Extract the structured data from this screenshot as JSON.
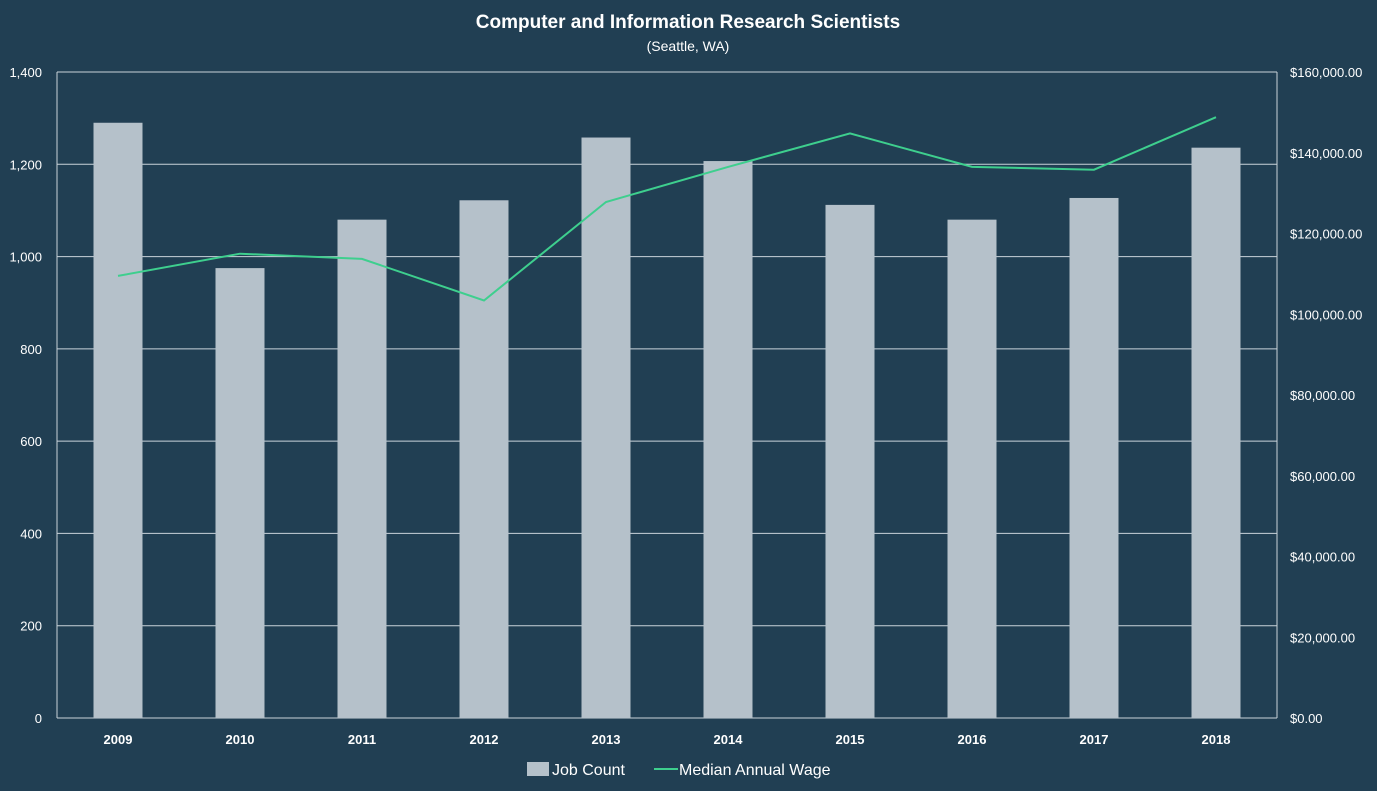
{
  "chart_data": {
    "type": "bar",
    "title": "Computer and Information Research Scientists",
    "subtitle": "(Seattle, WA)",
    "categories": [
      "2009",
      "2010",
      "2011",
      "2012",
      "2013",
      "2014",
      "2015",
      "2016",
      "2017",
      "2018"
    ],
    "series": [
      {
        "name": "Job Count",
        "type": "bar",
        "axis": "left",
        "color": "#b5c1ca",
        "values": [
          1290,
          975,
          1080,
          1122,
          1258,
          1207,
          1112,
          1080,
          1127,
          1236
        ]
      },
      {
        "name": "Median Annual Wage",
        "type": "line",
        "axis": "right",
        "color": "#3ecf8e",
        "values": [
          109500,
          115000,
          113700,
          103400,
          127800,
          136500,
          144800,
          136500,
          135800,
          148800
        ]
      }
    ],
    "y_left": {
      "min": 0,
      "max": 1400,
      "ticks": [
        0,
        200,
        400,
        600,
        800,
        1000,
        1200,
        1400
      ],
      "tick_labels": [
        "0",
        "200",
        "400",
        "600",
        "800",
        "1,000",
        "1,200",
        "1,400"
      ]
    },
    "y_right": {
      "min": 0,
      "max": 160000,
      "ticks": [
        0,
        20000,
        40000,
        60000,
        80000,
        100000,
        120000,
        140000,
        160000
      ],
      "tick_labels": [
        "$0.00",
        "$20,000.00",
        "$40,000.00",
        "$60,000.00",
        "$80,000.00",
        "$100,000.00",
        "$120,000.00",
        "$140,000.00",
        "$160,000.00"
      ]
    },
    "grid": true,
    "legend": "bottom",
    "background": "#213f53",
    "grid_color": "#c9d3da"
  }
}
